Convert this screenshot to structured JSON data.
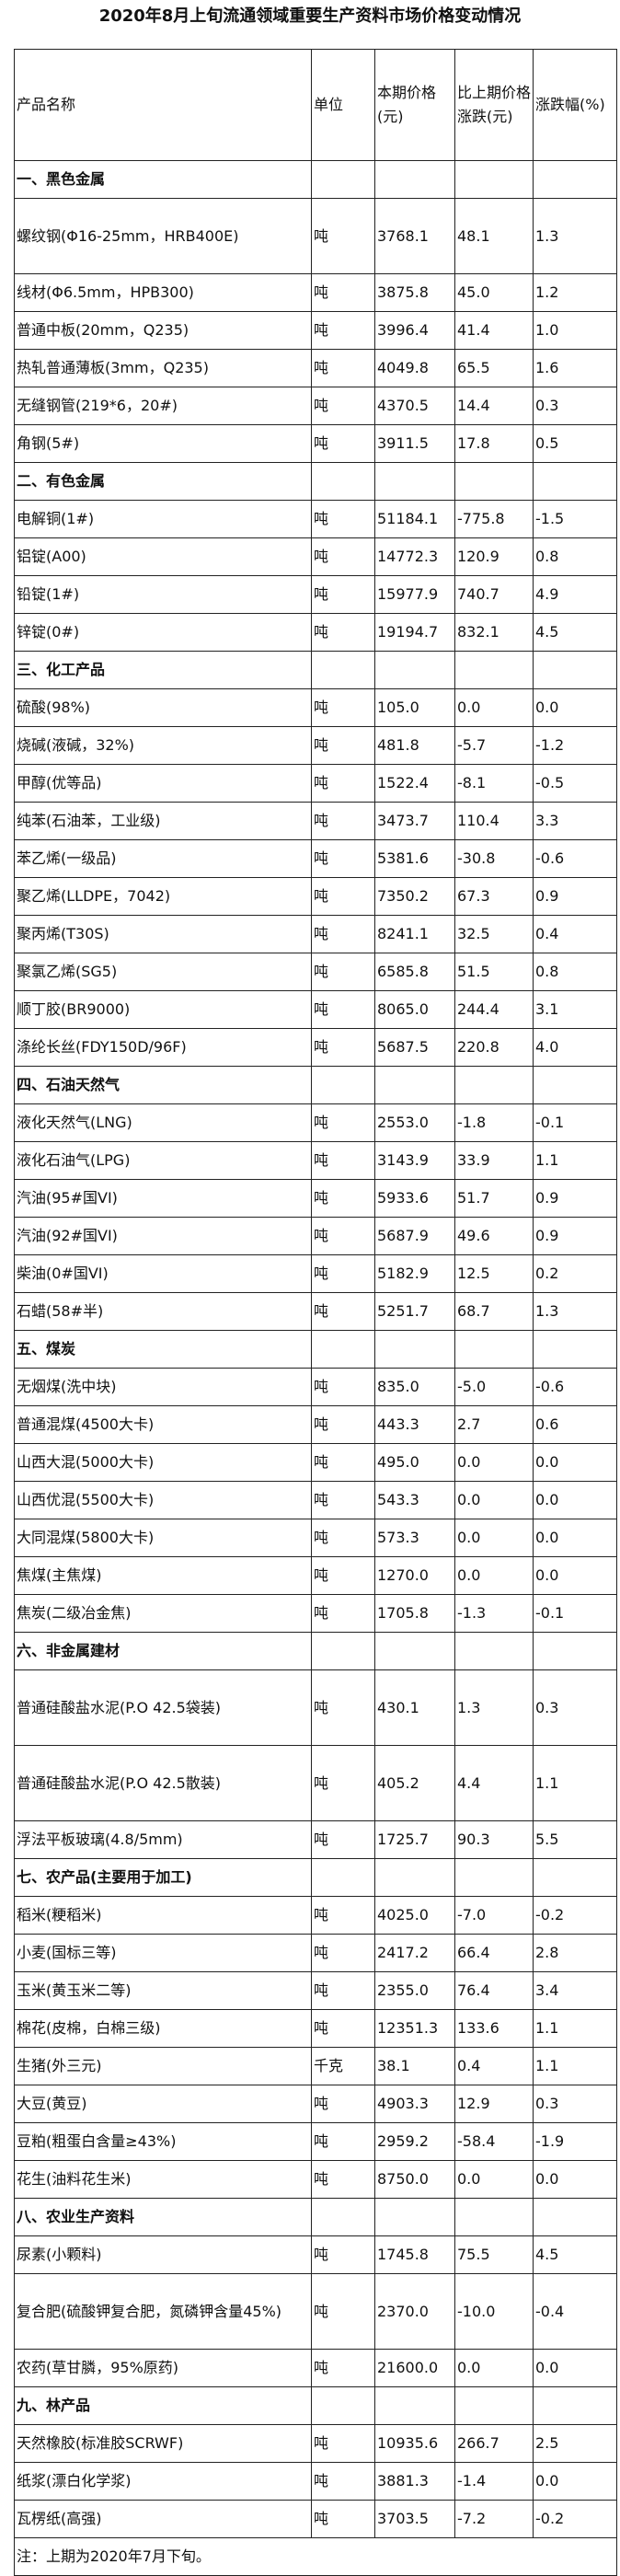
{
  "title": "2020年8月上旬流通领域重要生产资料市场价格变动情况",
  "headers": {
    "name": "产品名称",
    "unit": "单位",
    "price": "本期价格(元)",
    "change": "比上期价格涨跌(元)",
    "pct": "涨跌幅(%)"
  },
  "sections": [
    {
      "title": "一、黑色金属",
      "items": [
        [
          "螺纹钢(Φ16-25mm，HRB400E)",
          "吨",
          "3768.1",
          "48.1",
          "1.3"
        ],
        [
          "线材(Φ6.5mm，HPB300)",
          "吨",
          "3875.8",
          "45.0",
          "1.2"
        ],
        [
          "普通中板(20mm，Q235)",
          "吨",
          "3996.4",
          "41.4",
          "1.0"
        ],
        [
          "热轧普通薄板(3mm，Q235)",
          "吨",
          "4049.8",
          "65.5",
          "1.6"
        ],
        [
          "无缝钢管(219*6，20#)",
          "吨",
          "4370.5",
          "14.4",
          "0.3"
        ],
        [
          "角钢(5#)",
          "吨",
          "3911.5",
          "17.8",
          "0.5"
        ]
      ]
    },
    {
      "title": "二、有色金属",
      "items": [
        [
          "电解铜(1#)",
          "吨",
          "51184.1",
          "-775.8",
          "-1.5"
        ],
        [
          "铝锭(A00)",
          "吨",
          "14772.3",
          "120.9",
          "0.8"
        ],
        [
          "铅锭(1#)",
          "吨",
          "15977.9",
          "740.7",
          "4.9"
        ],
        [
          "锌锭(0#)",
          "吨",
          "19194.7",
          "832.1",
          "4.5"
        ]
      ]
    },
    {
      "title": "三、化工产品",
      "items": [
        [
          "硫酸(98%)",
          "吨",
          "105.0",
          "0.0",
          "0.0"
        ],
        [
          "烧碱(液碱，32%)",
          "吨",
          "481.8",
          "-5.7",
          "-1.2"
        ],
        [
          "甲醇(优等品)",
          "吨",
          "1522.4",
          "-8.1",
          "-0.5"
        ],
        [
          "纯苯(石油苯，工业级)",
          "吨",
          "3473.7",
          "110.4",
          "3.3"
        ],
        [
          "苯乙烯(一级品)",
          "吨",
          "5381.6",
          "-30.8",
          "-0.6"
        ],
        [
          "聚乙烯(LLDPE，7042)",
          "吨",
          "7350.2",
          "67.3",
          "0.9"
        ],
        [
          "聚丙烯(T30S)",
          "吨",
          "8241.1",
          "32.5",
          "0.4"
        ],
        [
          "聚氯乙烯(SG5)",
          "吨",
          "6585.8",
          "51.5",
          "0.8"
        ],
        [
          "顺丁胶(BR9000)",
          "吨",
          "8065.0",
          "244.4",
          "3.1"
        ],
        [
          "涤纶长丝(FDY150D/96F)",
          "吨",
          "5687.5",
          "220.8",
          "4.0"
        ]
      ]
    },
    {
      "title": "四、石油天然气",
      "items": [
        [
          "液化天然气(LNG)",
          "吨",
          "2553.0",
          "-1.8",
          "-0.1"
        ],
        [
          "液化石油气(LPG)",
          "吨",
          "3143.9",
          "33.9",
          "1.1"
        ],
        [
          "汽油(95#国VI)",
          "吨",
          "5933.6",
          "51.7",
          "0.9"
        ],
        [
          "汽油(92#国VI)",
          "吨",
          "5687.9",
          "49.6",
          "0.9"
        ],
        [
          "柴油(0#国VI)",
          "吨",
          "5182.9",
          "12.5",
          "0.2"
        ],
        [
          "石蜡(58#半)",
          "吨",
          "5251.7",
          "68.7",
          "1.3"
        ]
      ]
    },
    {
      "title": "五、煤炭",
      "items": [
        [
          "无烟煤(洗中块)",
          "吨",
          "835.0",
          "-5.0",
          "-0.6"
        ],
        [
          "普通混煤(4500大卡)",
          "吨",
          "443.3",
          "2.7",
          "0.6"
        ],
        [
          "山西大混(5000大卡)",
          "吨",
          "495.0",
          "0.0",
          "0.0"
        ],
        [
          "山西优混(5500大卡)",
          "吨",
          "543.3",
          "0.0",
          "0.0"
        ],
        [
          "大同混煤(5800大卡)",
          "吨",
          "573.3",
          "0.0",
          "0.0"
        ],
        [
          "焦煤(主焦煤)",
          "吨",
          "1270.0",
          "0.0",
          "0.0"
        ],
        [
          "焦炭(二级冶金焦)",
          "吨",
          "1705.8",
          "-1.3",
          "-0.1"
        ]
      ]
    },
    {
      "title": "六、非金属建材",
      "items": [
        [
          "普通硅酸盐水泥(P.O 42.5袋装)",
          "吨",
          "430.1",
          "1.3",
          "0.3"
        ],
        [
          "普通硅酸盐水泥(P.O 42.5散装)",
          "吨",
          "405.2",
          "4.4",
          "1.1"
        ],
        [
          "浮法平板玻璃(4.8/5mm)",
          "吨",
          "1725.7",
          "90.3",
          "5.5"
        ]
      ]
    },
    {
      "title": "七、农产品(主要用于加工)",
      "items": [
        [
          "稻米(粳稻米)",
          "吨",
          "4025.0",
          "-7.0",
          "-0.2"
        ],
        [
          "小麦(国标三等)",
          "吨",
          "2417.2",
          "66.4",
          "2.8"
        ],
        [
          "玉米(黄玉米二等)",
          "吨",
          "2355.0",
          "76.4",
          "3.4"
        ],
        [
          "棉花(皮棉，白棉三级)",
          "吨",
          "12351.3",
          "133.6",
          "1.1"
        ],
        [
          "生猪(外三元)",
          "千克",
          "38.1",
          "0.4",
          "1.1"
        ],
        [
          "大豆(黄豆)",
          "吨",
          "4903.3",
          "12.9",
          "0.3"
        ],
        [
          "豆粕(粗蛋白含量≥43%)",
          "吨",
          "2959.2",
          "-58.4",
          "-1.9"
        ],
        [
          "花生(油料花生米)",
          "吨",
          "8750.0",
          "0.0",
          "0.0"
        ]
      ]
    },
    {
      "title": "八、农业生产资料",
      "items": [
        [
          "尿素(小颗料)",
          "吨",
          "1745.8",
          "75.5",
          "4.5"
        ],
        [
          "复合肥(硫酸钾复合肥，氮磷钾含量45%)",
          "吨",
          "2370.0",
          "-10.0",
          "-0.4"
        ],
        [
          "农药(草甘膦，95%原药)",
          "吨",
          "21600.0",
          "0.0",
          "0.0"
        ]
      ]
    },
    {
      "title": "九、林产品",
      "items": [
        [
          "天然橡胶(标准胶SCRWF)",
          "吨",
          "10935.6",
          "266.7",
          "2.5"
        ],
        [
          "纸浆(漂白化学浆)",
          "吨",
          "3881.3",
          "-1.4",
          "0.0"
        ],
        [
          "瓦楞纸(高强)",
          "吨",
          "3703.5",
          "-7.2",
          "-0.2"
        ]
      ]
    }
  ],
  "note": "注：上期为2020年7月下旬。"
}
